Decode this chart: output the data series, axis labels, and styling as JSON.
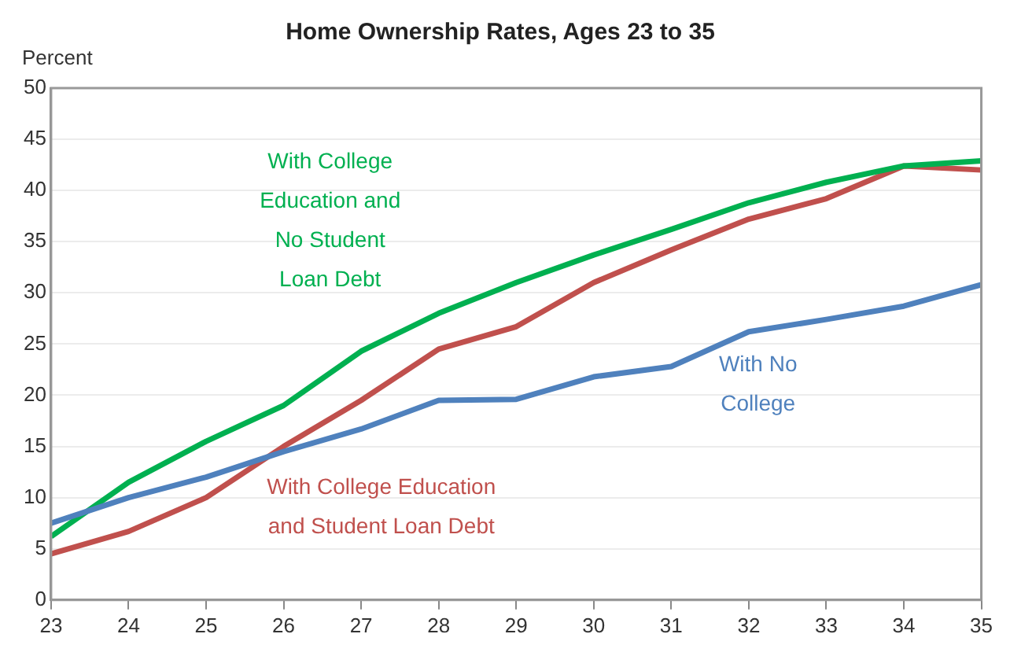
{
  "chart_data": {
    "type": "line",
    "title": "Home Ownership Rates, Ages 23 to 35",
    "ylabel": "Percent",
    "x": [
      23,
      24,
      25,
      26,
      27,
      28,
      29,
      30,
      31,
      32,
      33,
      34,
      35
    ],
    "xlim": [
      23,
      35
    ],
    "xticks": [
      23,
      24,
      25,
      26,
      27,
      28,
      29,
      30,
      31,
      32,
      33,
      34,
      35
    ],
    "ylim": [
      0,
      50
    ],
    "yticks": [
      0,
      5,
      10,
      15,
      20,
      25,
      30,
      35,
      40,
      45,
      50
    ],
    "grid": "y",
    "legend": false,
    "marker": "none",
    "line_style": "solid",
    "series": [
      {
        "name": "With No College",
        "color": "#4f81bd",
        "values": [
          7.5,
          10,
          12,
          14.5,
          16.7,
          19.5,
          19.6,
          21.8,
          22.8,
          26.2,
          27.4,
          28.7,
          30.8
        ]
      },
      {
        "name": "With College Education and No Student Loan Debt",
        "color": "#00b050",
        "values": [
          6.2,
          11.5,
          15.5,
          19,
          24.3,
          28,
          31,
          33.7,
          36.2,
          38.8,
          40.8,
          42.4,
          42.9
        ]
      },
      {
        "name": "With College Education and Student Loan Debt",
        "color": "#c0504d",
        "values": [
          4.5,
          6.7,
          10,
          15,
          19.5,
          24.5,
          26.7,
          31,
          34.2,
          37.2,
          39.2,
          42.4,
          42
        ]
      }
    ]
  }
}
